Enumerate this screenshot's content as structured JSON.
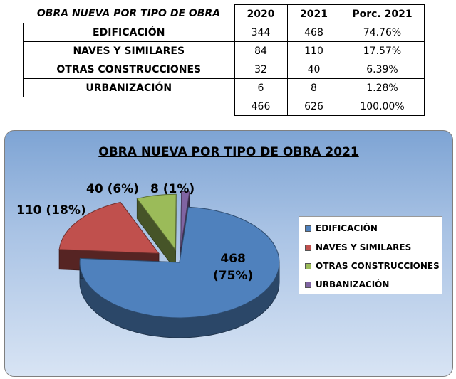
{
  "table": {
    "headers": [
      "OBRA NUEVA POR TIPO DE OBRA",
      "2020",
      "2021",
      "Porc. 2021"
    ],
    "rows": [
      {
        "label": "EDIFICACIÓN",
        "y2020": "344",
        "y2021": "468",
        "pct": "74.76%"
      },
      {
        "label": "NAVES Y SIMILARES",
        "y2020": "84",
        "y2021": "110",
        "pct": "17.57%"
      },
      {
        "label": "OTRAS CONSTRUCCIONES",
        "y2020": "32",
        "y2021": "40",
        "pct": "6.39%"
      },
      {
        "label": "URBANIZACIÓN",
        "y2020": "6",
        "y2021": "8",
        "pct": "1.28%"
      }
    ],
    "totals": {
      "y2020": "466",
      "y2021": "626",
      "pct": "100.00%"
    }
  },
  "chart_data": {
    "type": "pie",
    "title": "OBRA NUEVA POR TIPO DE OBRA 2021",
    "categories": [
      "EDIFICACIÓN",
      "NAVES Y SIMILARES",
      "OTRAS CONSTRUCCIONES",
      "URBANIZACIÓN"
    ],
    "values": [
      468,
      110,
      40,
      8
    ],
    "data_labels": [
      {
        "line1": "468",
        "line2": "(75%)"
      },
      {
        "line1": "110 (18%)",
        "line2": ""
      },
      {
        "line1": "40 (6%)",
        "line2": ""
      },
      {
        "line1": "8 (1%)",
        "line2": ""
      }
    ],
    "colors": [
      "#4f81bd",
      "#c0504d",
      "#9bbb59",
      "#8064a2"
    ],
    "legend_position": "right",
    "exploded": true,
    "three_d": true
  }
}
